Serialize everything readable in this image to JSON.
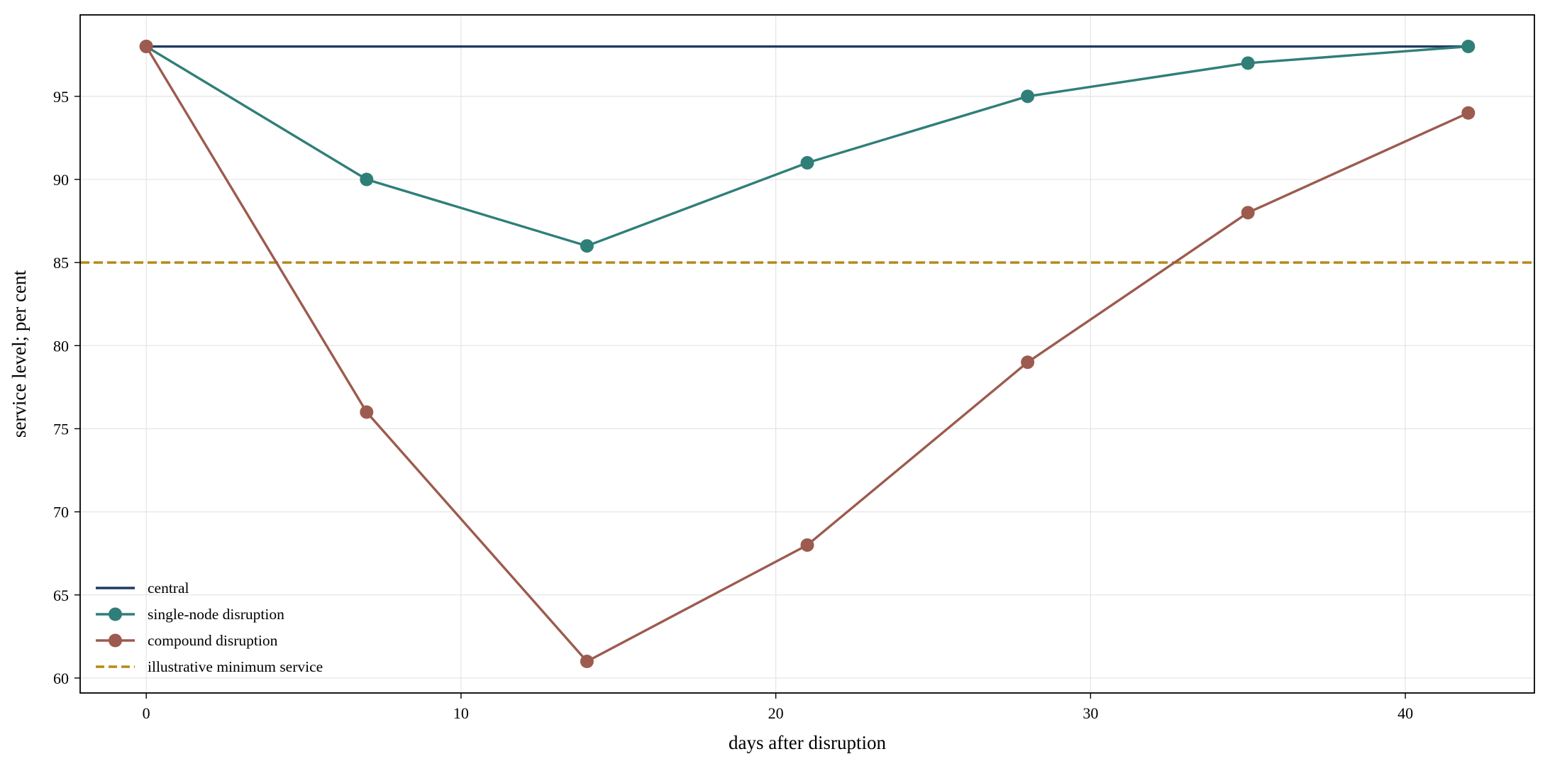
{
  "chart_data": {
    "type": "line",
    "xlabel": "days after disruption",
    "ylabel": "service level; per cent",
    "xlim": [
      -2.1,
      44.1
    ],
    "ylim": [
      59.1,
      99.9
    ],
    "xticks": [
      0,
      10,
      20,
      30,
      40
    ],
    "yticks": [
      60,
      65,
      70,
      75,
      80,
      85,
      90,
      95
    ],
    "grid": true,
    "legend_position": "lower-left",
    "series": [
      {
        "name": "central",
        "color": "#1f3b63",
        "marker": "none",
        "x": [
          0,
          42
        ],
        "y": [
          98,
          98
        ]
      },
      {
        "name": "single-node disruption",
        "color": "#2f7f78",
        "marker": "circle",
        "x": [
          0,
          7,
          14,
          21,
          28,
          35,
          42
        ],
        "y": [
          98,
          90,
          86,
          91,
          95,
          97,
          98
        ]
      },
      {
        "name": "compound disruption",
        "color": "#9c5b4e",
        "marker": "circle",
        "x": [
          0,
          7,
          14,
          21,
          28,
          35,
          42
        ],
        "y": [
          98,
          76,
          61,
          68,
          79,
          88,
          94
        ]
      }
    ],
    "reference_lines": [
      {
        "name": "illustrative minimum service",
        "orientation": "horizontal",
        "y": 85,
        "color": "#b8891a",
        "style": "dashed"
      }
    ]
  }
}
